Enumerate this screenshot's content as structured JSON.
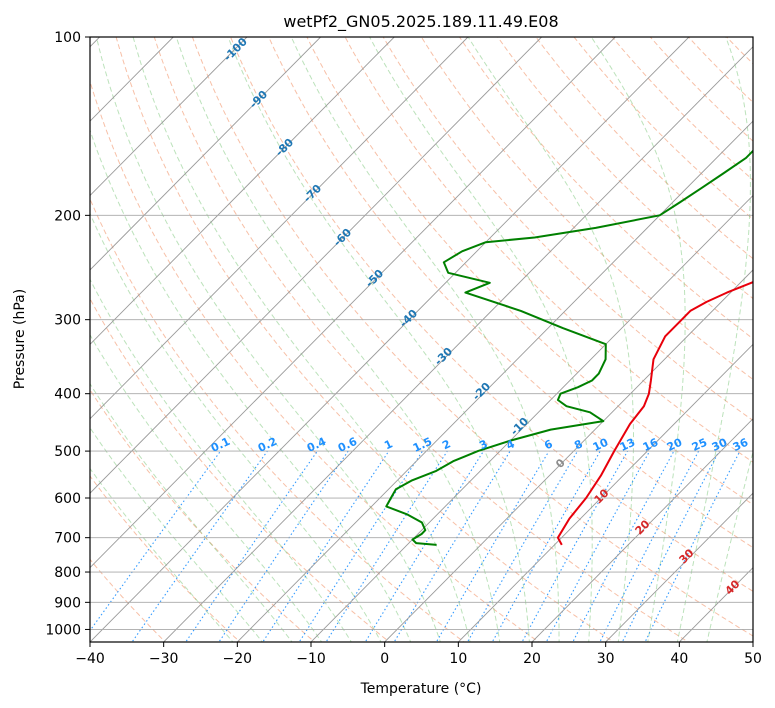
{
  "chart_data": {
    "type": "line",
    "subtype": "skew-t log-p diagram",
    "title": "wetPf2_GN05.2025.189.11.49.E08",
    "xlabel": "Temperature (°C)",
    "ylabel": "Pressure (hPa)",
    "xlim": [
      -40,
      50
    ],
    "ylim": [
      1050,
      100
    ],
    "y_scale": "log",
    "grid": true,
    "x_ticks": [
      -40,
      -30,
      -20,
      -10,
      0,
      10,
      20,
      30,
      40,
      50
    ],
    "y_ticks": [
      100,
      200,
      300,
      400,
      500,
      600,
      700,
      800,
      900,
      1000
    ],
    "series": [
      {
        "role": "temperature",
        "color": "#e8000b",
        "pressure": [
          720,
          700,
          650,
          600,
          550,
          500,
          450,
          420,
          400,
          380,
          350,
          320,
          300,
          290,
          280,
          270,
          260,
          250,
          240,
          230,
          220,
          210,
          200,
          190,
          180,
          170,
          160,
          150,
          140,
          130,
          120,
          110,
          100
        ],
        "temperature": [
          11,
          9.5,
          8.5,
          8,
          7,
          5.5,
          4,
          3.5,
          2.5,
          1,
          -1.5,
          -3,
          -3,
          -3,
          -2,
          -0.5,
          1.5,
          3.5,
          4.5,
          5.5,
          6.5,
          8,
          9.5,
          11,
          12.5,
          14,
          15.5,
          17,
          18.5,
          21,
          25,
          29,
          34
        ]
      },
      {
        "role": "dewpoint",
        "color": "#008000",
        "pressure": [
          720,
          715,
          705,
          690,
          680,
          660,
          640,
          620,
          600,
          580,
          560,
          540,
          520,
          510,
          500,
          480,
          460,
          445,
          430,
          420,
          410,
          400,
          390,
          380,
          370,
          350,
          330,
          310,
          290,
          270,
          260,
          250,
          240,
          230,
          222,
          218,
          210,
          200,
          190,
          180,
          170,
          160,
          150,
          140,
          130,
          120,
          110,
          100
        ],
        "temperature": [
          -6,
          -9,
          -10,
          -9.5,
          -9.5,
          -11,
          -14,
          -18,
          -18.5,
          -19,
          -18,
          -16,
          -15,
          -14,
          -13,
          -10,
          -6,
          0,
          -3,
          -7,
          -9,
          -9.5,
          -8,
          -7,
          -7,
          -8,
          -10,
          -18,
          -26,
          -36,
          -34,
          -41,
          -43,
          -42,
          -40,
          -34,
          -27,
          -20,
          -19,
          -18,
          -17,
          -16,
          -16,
          -15,
          -14,
          -11,
          -10,
          -6
        ]
      }
    ],
    "dry_adiabats_label": [
      "-100",
      "-90",
      "-80",
      "-70",
      "-60",
      "-50",
      "-40",
      "-30",
      "-20",
      "-10"
    ],
    "mixing_ratio_labels": [
      "0.1",
      "0.2",
      "0.4",
      "0.6",
      "1",
      "1.5",
      "2",
      "3",
      "4",
      "6",
      "8",
      "10",
      "13",
      "16",
      "20",
      "25",
      "30",
      "36"
    ],
    "moist_adiabat_labels": [
      "0",
      "10",
      "20",
      "30",
      "40"
    ],
    "colors": {
      "temperature": "#e8000b",
      "dewpoint": "#008000",
      "dry_adiabat_label": "#1f77b4",
      "mixing_ratio_label": "#1e90ff",
      "moist_adiabat_label": "#d62728",
      "isotherm": "#999999",
      "isobar": "#999999"
    }
  }
}
